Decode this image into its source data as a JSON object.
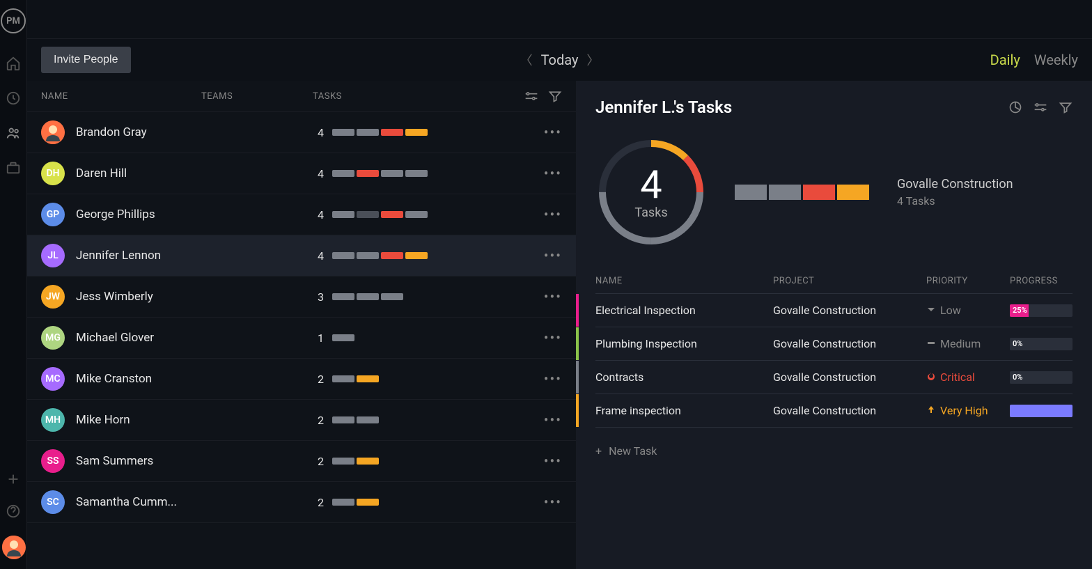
{
  "app": {
    "logo": "PM"
  },
  "header": {
    "invite": "Invite People",
    "date": "Today",
    "views": {
      "daily": "Daily",
      "weekly": "Weekly",
      "active": "daily"
    }
  },
  "columns": {
    "name": "NAME",
    "teams": "TEAMS",
    "tasks": "TASKS"
  },
  "colors": {
    "gray": "#7a7f88",
    "darkgray": "#4a4f58",
    "red": "#e94b3c",
    "orange": "#f5a623",
    "yellow": "#d8e24a",
    "green": "#8bc34a",
    "teal": "#4db6ac",
    "blue": "#5c8ce8",
    "purple": "#a66bff",
    "pink": "#e91e8c",
    "indigo": "#7b7bff",
    "lime": "#aed581"
  },
  "people": [
    {
      "name": "Brandon Gray",
      "initials": "",
      "avatar_type": "img",
      "avatar_color": "#ff7043",
      "count": 4,
      "bars": [
        "gray",
        "gray",
        "red",
        "orange"
      ]
    },
    {
      "name": "Daren Hill",
      "initials": "DH",
      "avatar_type": "initials",
      "avatar_color": "#d8e24a",
      "count": 4,
      "bars": [
        "gray",
        "red",
        "gray",
        "gray"
      ]
    },
    {
      "name": "George Phillips",
      "initials": "GP",
      "avatar_type": "initials",
      "avatar_color": "#5c8ce8",
      "count": 4,
      "bars": [
        "gray",
        "darkgray",
        "red",
        "gray"
      ]
    },
    {
      "name": "Jennifer Lennon",
      "initials": "JL",
      "avatar_type": "initials",
      "avatar_color": "#a66bff",
      "count": 4,
      "bars": [
        "gray",
        "gray",
        "red",
        "orange"
      ],
      "selected": true
    },
    {
      "name": "Jess Wimberly",
      "initials": "JW",
      "avatar_type": "initials",
      "avatar_color": "#f5a623",
      "count": 3,
      "bars": [
        "gray",
        "gray",
        "gray"
      ]
    },
    {
      "name": "Michael Glover",
      "initials": "MG",
      "avatar_type": "initials",
      "avatar_color": "#aed581",
      "count": 1,
      "bars": [
        "gray"
      ]
    },
    {
      "name": "Mike Cranston",
      "initials": "MC",
      "avatar_type": "initials",
      "avatar_color": "#a66bff",
      "count": 2,
      "bars": [
        "gray",
        "orange"
      ]
    },
    {
      "name": "Mike Horn",
      "initials": "MH",
      "avatar_type": "initials",
      "avatar_color": "#4db6ac",
      "count": 2,
      "bars": [
        "gray",
        "gray"
      ]
    },
    {
      "name": "Sam Summers",
      "initials": "SS",
      "avatar_type": "initials",
      "avatar_color": "#e91e8c",
      "count": 2,
      "bars": [
        "gray",
        "orange"
      ]
    },
    {
      "name": "Samantha Cumm...",
      "initials": "SC",
      "avatar_type": "initials",
      "avatar_color": "#5c8ce8",
      "count": 2,
      "bars": [
        "gray",
        "orange"
      ]
    }
  ],
  "detail": {
    "title": "Jennifer L.'s Tasks",
    "ring": {
      "count": 4,
      "label": "Tasks",
      "segments": [
        {
          "color": "#f5a623",
          "frac": 0.125
        },
        {
          "color": "#e94b3c",
          "frac": 0.125
        },
        {
          "color": "#7a7f88",
          "frac": 0.25
        },
        {
          "color": "#7a7f88",
          "frac": 0.25
        }
      ],
      "bg": "#2a2f3a"
    },
    "summary_bars": [
      "gray",
      "gray",
      "red",
      "orange"
    ],
    "project": "Govalle Construction",
    "project_count": "4 Tasks",
    "task_columns": {
      "name": "NAME",
      "project": "PROJECT",
      "priority": "PRIORITY",
      "progress": "PROGRESS"
    },
    "tasks": [
      {
        "name": "Electrical Inspection",
        "project": "Govalle Construction",
        "priority": "Low",
        "priority_color": "#888",
        "priority_icon": "down",
        "progress": "25%",
        "progress_pct": 25,
        "progress_color": "#e91e8c",
        "edge": "#e91e8c"
      },
      {
        "name": "Plumbing Inspection",
        "project": "Govalle Construction",
        "priority": "Medium",
        "priority_color": "#888",
        "priority_icon": "dash",
        "progress": "0%",
        "progress_pct": 0,
        "progress_color": "#2a2f3a",
        "edge": "#8bc34a"
      },
      {
        "name": "Contracts",
        "project": "Govalle Construction",
        "priority": "Critical",
        "priority_color": "#e94b3c",
        "priority_icon": "fire",
        "progress": "0%",
        "progress_pct": 0,
        "progress_color": "#2a2f3a",
        "edge": "#7a7f88"
      },
      {
        "name": "Frame inspection",
        "project": "Govalle Construction",
        "priority": "Very High",
        "priority_color": "#f5a623",
        "priority_icon": "up",
        "progress": "",
        "progress_pct": 100,
        "progress_color": "#7b7bff",
        "edge": "#f5a623"
      }
    ],
    "new_task": "New Task"
  }
}
